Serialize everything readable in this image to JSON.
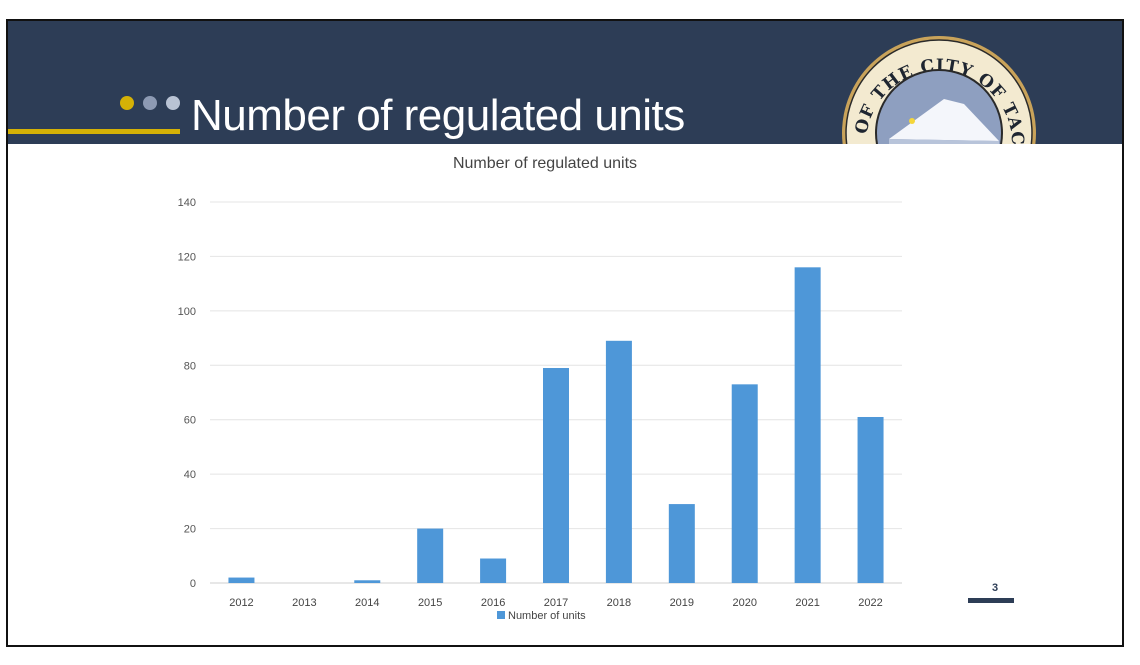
{
  "slide": {
    "title": "Number of regulated units",
    "page_number": "3",
    "seal_text": "SEAL OF THE CITY OF TACOMA",
    "colors": {
      "header": "#2d3d56",
      "accent": "#d4b106",
      "dot2": "#8d9ab3",
      "dot3": "#b9c3d4",
      "bar": "#4e97d8"
    }
  },
  "chart_data": {
    "type": "bar",
    "title": "Number of regulated units",
    "categories": [
      "2012",
      "2013",
      "2014",
      "2015",
      "2016",
      "2017",
      "2018",
      "2019",
      "2020",
      "2021",
      "2022"
    ],
    "series": [
      {
        "name": "Number of units",
        "values": [
          2,
          0,
          1,
          20,
          9,
          79,
          89,
          29,
          73,
          116,
          61
        ]
      }
    ],
    "xlabel": "",
    "ylabel": "",
    "ylim": [
      0,
      140
    ],
    "yticks": [
      0,
      20,
      40,
      60,
      80,
      100,
      120,
      140
    ],
    "grid": true,
    "legend": "bottom"
  }
}
